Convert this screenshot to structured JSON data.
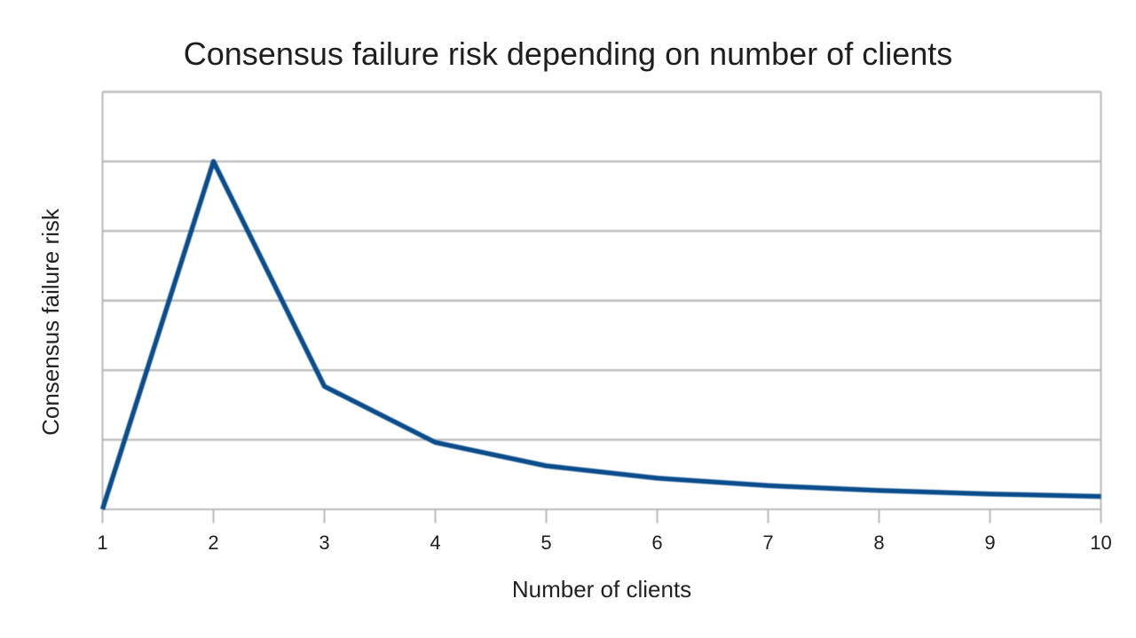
{
  "title": "Consensus failure risk depending on number of clients",
  "colors": {
    "series_line": "#0b4d8c",
    "grid_line": "#bcbcbc",
    "axis_line": "#b9b9b9",
    "text": "#1e1e1e",
    "background": "#ffffff"
  },
  "chart_data": {
    "type": "line",
    "title": "Consensus failure risk depending on number of clients",
    "xlabel": "Number of clients",
    "ylabel": "Consensus failure risk",
    "x": [
      1,
      2,
      3,
      4,
      5,
      6,
      7,
      8,
      9,
      10
    ],
    "x_tick_labels": [
      "1",
      "2",
      "3",
      "4",
      "5",
      "6",
      "7",
      "8",
      "9",
      "10"
    ],
    "values": [
      0,
      0.5,
      0.1768,
      0.0962,
      0.0625,
      0.0447,
      0.034,
      0.027,
      0.0221,
      0.0185
    ],
    "xlim": [
      1,
      10
    ],
    "ylim": [
      0,
      0.6
    ],
    "y_grid_step": 0.1,
    "grid": "horizontal gridlines only",
    "y_tick_labels_visible": false,
    "legend": "none"
  }
}
